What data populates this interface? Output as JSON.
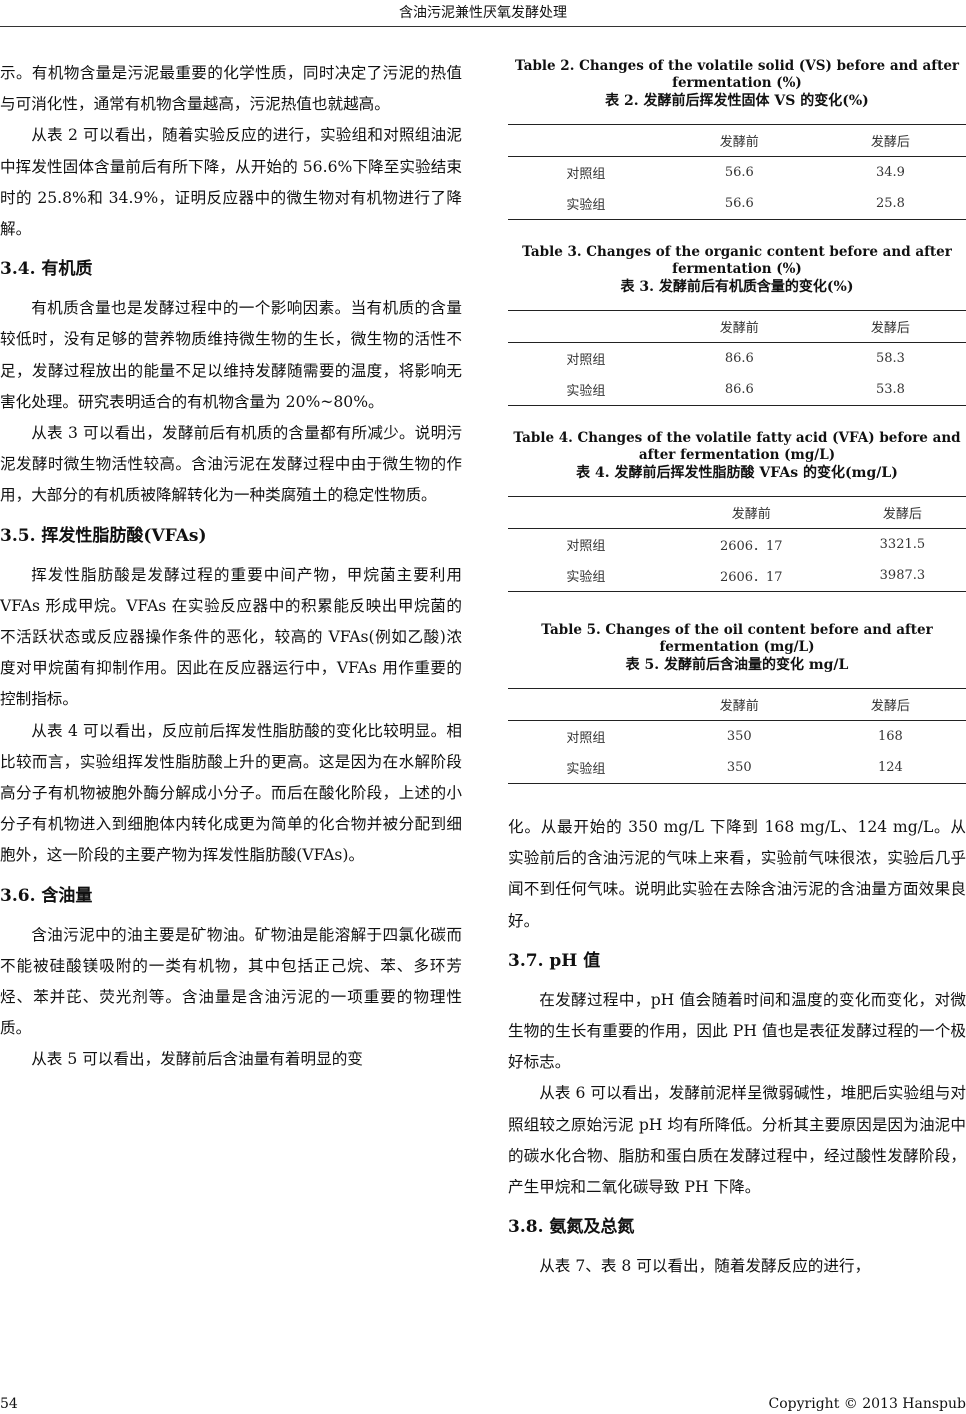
{
  "header": {
    "title": "含油污泥兼性厌氧发酵处理"
  },
  "left": [
    {
      "type": "p",
      "noindent": true,
      "text": "示。有机物含量是污泥最重要的化学性质，同时决定了污泥的热值与可消化性，通常有机物含量越高，污泥热值也就越高。"
    },
    {
      "type": "p",
      "text": "从表 2 可以看出，随着实验反应的进行，实验组和对照组油泥中挥发性固体含量前后有所下降，从开始的 56.6%下降至实验结束时的 25.8%和 34.9%，证明反应器中的微生物对有机物进行了降解。"
    },
    {
      "type": "h",
      "text": "3.4.  有机质"
    },
    {
      "type": "p",
      "text": "有机质含量也是发酵过程中的一个影响因素。当有机质的含量较低时，没有足够的营养物质维持微生物的生长，微生物的活性不足，发酵过程放出的能量不足以维持发酵随需要的温度，将影响无害化处理。研究表明适合的有机物含量为 20%~80%。"
    },
    {
      "type": "p",
      "text": "从表 3 可以看出，发酵前后有机质的含量都有所减少。说明污泥发酵时微生物活性较高。含油污泥在发酵过程中由于微生物的作用，大部分的有机质被降解转化为一种类腐殖土的稳定性物质。"
    },
    {
      "type": "h",
      "text": "3.5.  挥发性脂肪酸(VFAs)"
    },
    {
      "type": "p",
      "text": "挥发性脂肪酸是发酵过程的重要中间产物，甲烷菌主要利用 VFAs 形成甲烷。VFAs 在实验反应器中的积累能反映出甲烷菌的不活跃状态或反应器操作条件的恶化，较高的 VFAs(例如乙酸)浓度对甲烷菌有抑制作用。因此在反应器运行中，VFAs 用作重要的控制指标。"
    },
    {
      "type": "p",
      "text": "从表 4 可以看出，反应前后挥发性脂肪酸的变化比较明显。相比较而言，实验组挥发性脂肪酸上升的更高。这是因为在水解阶段高分子有机物被胞外酶分解成小分子。而后在酸化阶段，上述的小分子有机物进入到细胞体内转化成更为简单的化合物并被分配到细胞外，这一阶段的主要产物为挥发性脂肪酸(VFAs)。"
    },
    {
      "type": "h",
      "text": "3.6.  含油量"
    },
    {
      "type": "p",
      "text": "含油污泥中的油主要是矿物油。矿物油是能溶解于四氯化碳而不能被硅酸镁吸附的一类有机物，其中包括正己烷、苯、多环芳烃、苯并芘、荧光剂等。含油量是含油污泥的一项重要的物理性质。"
    },
    {
      "type": "p",
      "text": "从表 5 可以看出，发酵前后含油量有着明显的变"
    }
  ],
  "tables": [
    {
      "caption_en": "Table 2. Changes of the volatile solid (VS) before and after fermentation (%)",
      "caption_zh": "表 2.  发酵前后挥发性固体 VS 的变化(%)",
      "headers": [
        "",
        "发酵前",
        "发酵后"
      ],
      "rows": [
        [
          "对照组",
          "56.6",
          "34.9"
        ],
        [
          "实验组",
          "56.6",
          "25.8"
        ]
      ]
    },
    {
      "caption_en": "Table 3. Changes of the organic content before and after fermentation (%)",
      "caption_zh": "表 3.  发酵前后有机质含量的变化(%)",
      "headers": [
        "",
        "发酵前",
        "发酵后"
      ],
      "rows": [
        [
          "对照组",
          "86.6",
          "58.3"
        ],
        [
          "实验组",
          "86.6",
          "53.8"
        ]
      ]
    },
    {
      "caption_en": "Table 4. Changes of the volatile fatty acid (VFA) before and after fermentation (mg/L)",
      "caption_zh": "表 4.  发酵前后挥发性脂肪酸 VFAs 的变化(mg/L)",
      "headers": [
        "",
        "发酵前",
        "发酵后"
      ],
      "rows": [
        [
          "对照组",
          "2606．17",
          "3321.5"
        ],
        [
          "实验组",
          "2606．17",
          "3987.3"
        ]
      ]
    },
    {
      "caption_en": "Table 5. Changes of the oil content before and after fermentation (mg/L)",
      "caption_zh": "表 5.  发酵前后含油量的变化 mg/L",
      "headers": [
        "",
        "发酵前",
        "发酵后"
      ],
      "rows": [
        [
          "对照组",
          "350",
          "168"
        ],
        [
          "实验组",
          "350",
          "124"
        ]
      ]
    }
  ],
  "right": [
    {
      "type": "p",
      "noindent": true,
      "text": "化。从最开始的 350 mg/L 下降到 168 mg/L、124 mg/L。从实验前后的含油污泥的气味上来看，实验前气味很浓，实验后几乎闻不到任何气味。说明此实验在去除含油污泥的含油量方面效果良好。"
    },
    {
      "type": "h",
      "text": "3.7. pH 值"
    },
    {
      "type": "p",
      "text": "在发酵过程中，pH 值会随着时间和温度的变化而变化，对微生物的生长有重要的作用，因此 PH 值也是表征发酵过程的一个极好标志。"
    },
    {
      "type": "p",
      "text": "从表 6 可以看出，发酵前泥样呈微弱碱性，堆肥后实验组与对照组较之原始污泥 pH 均有所降低。分析其主要原因是因为油泥中的碳水化合物、脂肪和蛋白质在发酵过程中，经过酸性发酵阶段，产生甲烷和二氧化碳导致 PH 下降。"
    },
    {
      "type": "h",
      "text": "3.8.  氨氮及总氮"
    },
    {
      "type": "p",
      "text": "从表 7、表 8 可以看出，随着发酵反应的进行，"
    }
  ],
  "footer": {
    "page": "54",
    "copyright": "Copyright © 2013 Hanspub"
  }
}
